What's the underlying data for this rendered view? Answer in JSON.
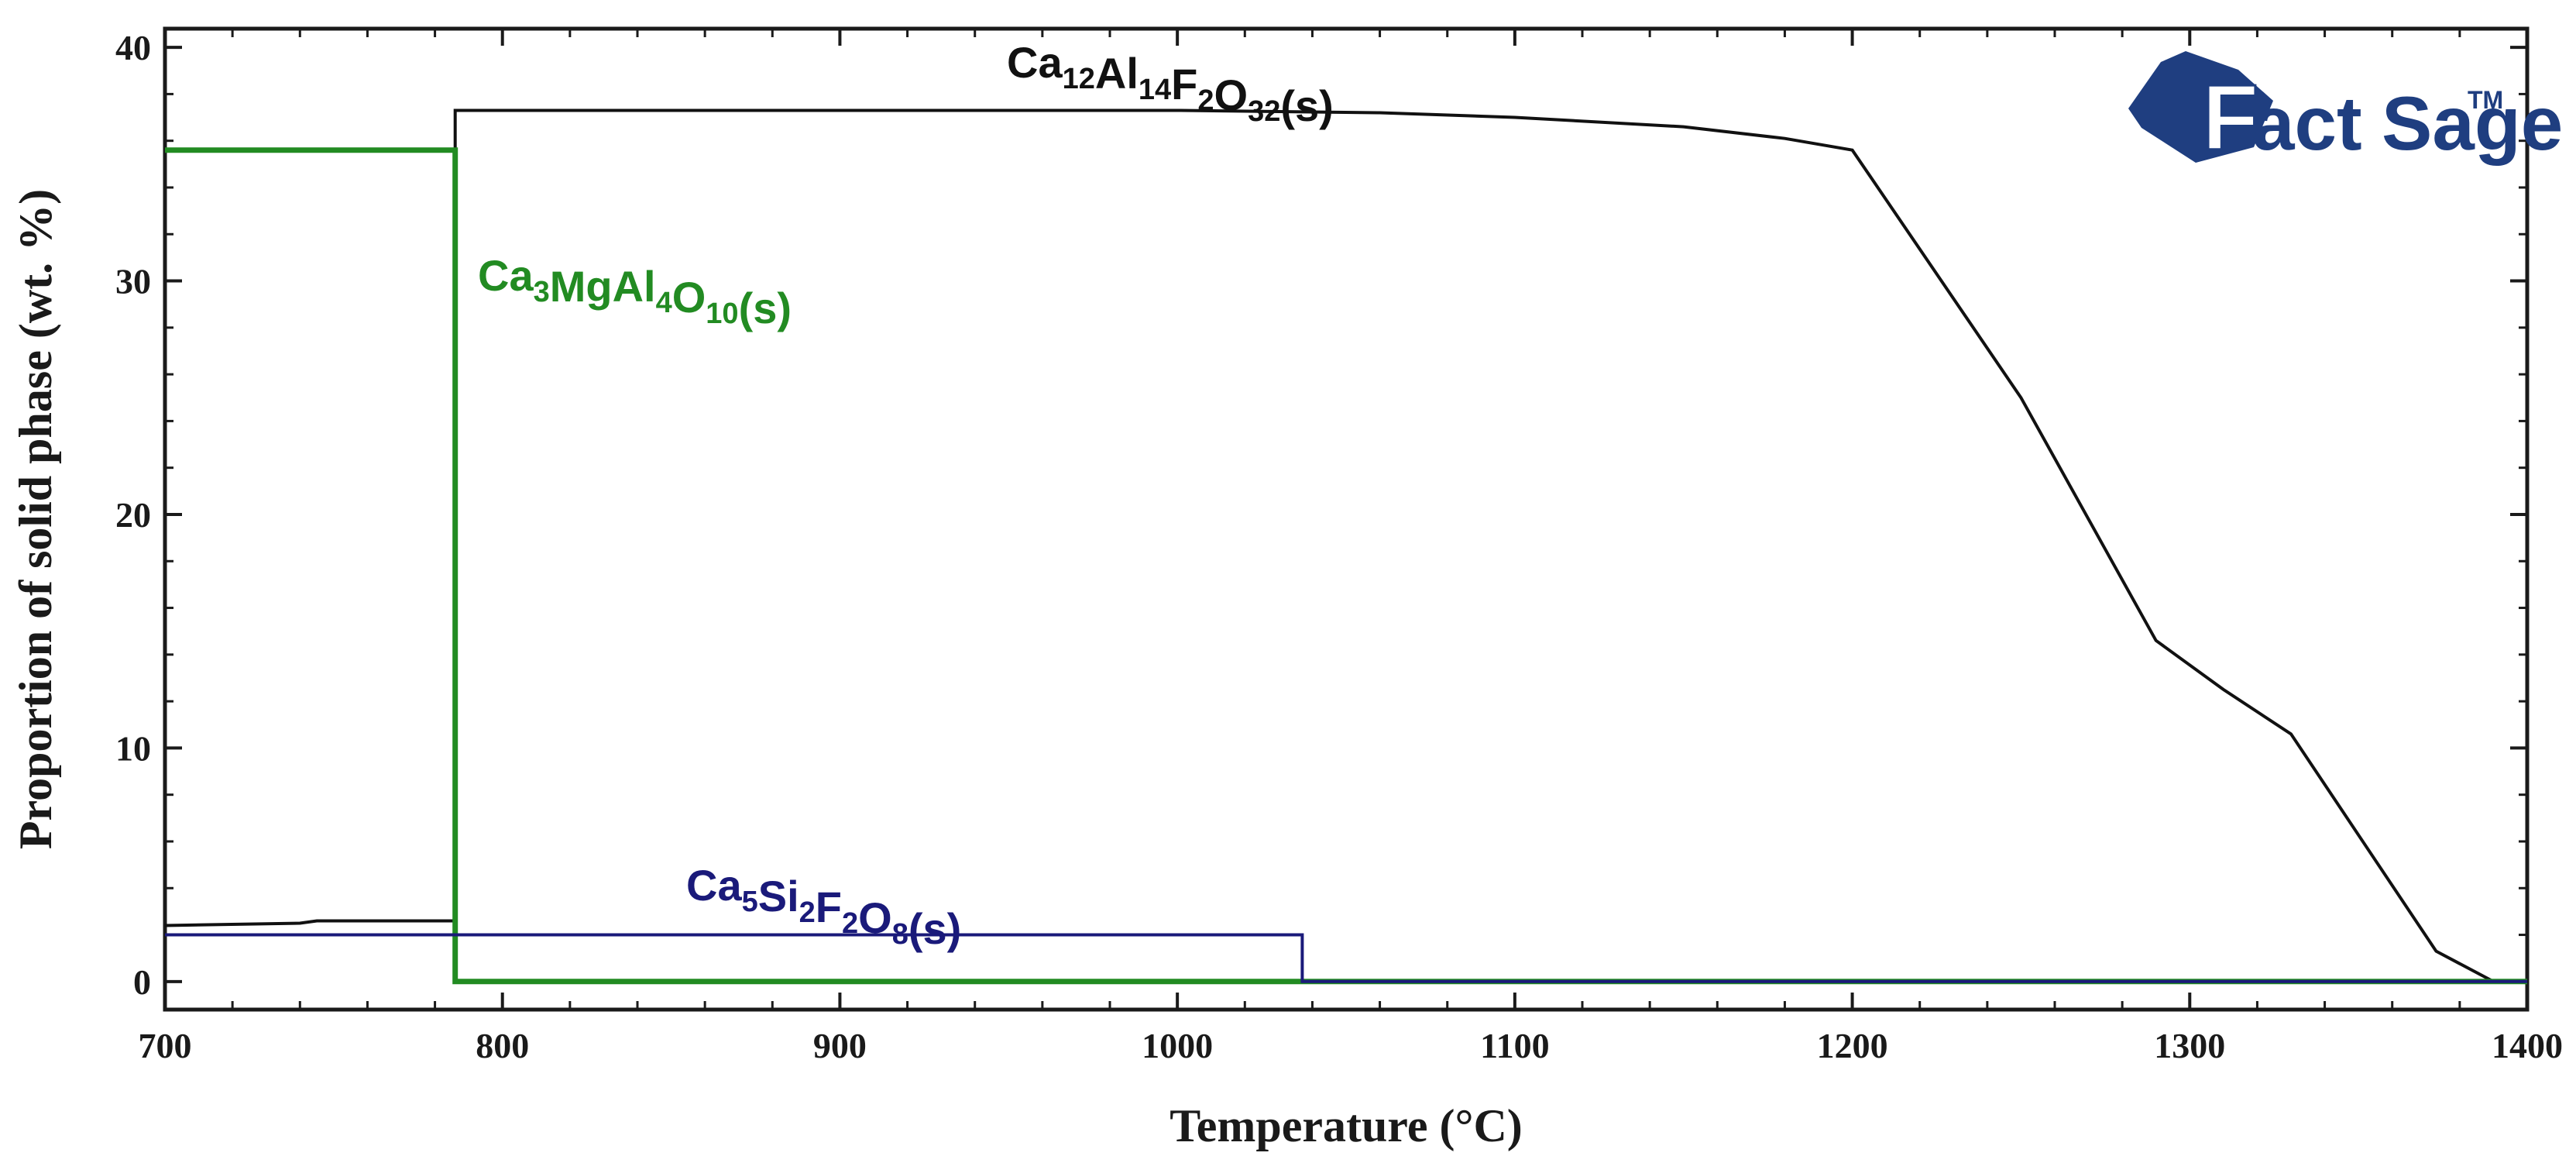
{
  "chart_data": {
    "type": "line",
    "title": "",
    "xlabel": "Temperature (°C)",
    "ylabel": "Proportion of solid phase (wt. %)",
    "xlim": [
      700,
      1400
    ],
    "ylim": [
      -1.2,
      40.8
    ],
    "xticks": [
      700,
      800,
      900,
      1000,
      1100,
      1200,
      1300,
      1400
    ],
    "yticks": [
      0,
      10,
      20,
      30,
      40
    ],
    "grid": false,
    "series": [
      {
        "name": "Ca12Al14F2O32(s)",
        "label_parts": [
          [
            "Ca",
            ""
          ],
          [
            "12",
            "sub"
          ],
          [
            "Al",
            ""
          ],
          [
            "14",
            "sub"
          ],
          [
            "F",
            ""
          ],
          [
            "2",
            "sub"
          ],
          [
            "O",
            ""
          ],
          [
            "32",
            "sub"
          ],
          [
            "(s)",
            ""
          ]
        ],
        "color": "#111111",
        "x": [
          700,
          740,
          745,
          786,
          786,
          1000,
          1060,
          1100,
          1150,
          1180,
          1200,
          1250,
          1290,
          1310,
          1330,
          1373,
          1390,
          1400
        ],
        "y": [
          2.4,
          2.5,
          2.6,
          2.6,
          37.3,
          37.3,
          37.2,
          37.0,
          36.6,
          36.1,
          35.6,
          25.0,
          14.6,
          12.5,
          10.6,
          1.3,
          0.0,
          0.0
        ]
      },
      {
        "name": "Ca3MgAl4O10(s)",
        "label_parts": [
          [
            "Ca",
            ""
          ],
          [
            "3",
            "sub"
          ],
          [
            "MgAl",
            ""
          ],
          [
            "4",
            "sub"
          ],
          [
            "O",
            ""
          ],
          [
            "10",
            "sub"
          ],
          [
            "(s)",
            ""
          ]
        ],
        "color": "#228b22",
        "x": [
          700,
          786,
          786,
          1400
        ],
        "y": [
          35.6,
          35.6,
          0.0,
          0.0
        ]
      },
      {
        "name": "Ca5Si2F2O8(s)",
        "label_parts": [
          [
            "Ca",
            ""
          ],
          [
            "5",
            "sub"
          ],
          [
            "Si",
            ""
          ],
          [
            "2",
            "sub"
          ],
          [
            "F",
            ""
          ],
          [
            "2",
            "sub"
          ],
          [
            "O",
            ""
          ],
          [
            "8",
            "sub"
          ],
          [
            "(s)",
            ""
          ]
        ],
        "color": "#1a1a7a",
        "x": [
          700,
          1037,
          1037,
          1400
        ],
        "y": [
          2.0,
          2.0,
          0.0,
          0.0
        ]
      }
    ]
  },
  "logo": {
    "brand_first": "F",
    "brand_second": "act",
    "brand_third": "Sage",
    "trademark": "TM"
  }
}
